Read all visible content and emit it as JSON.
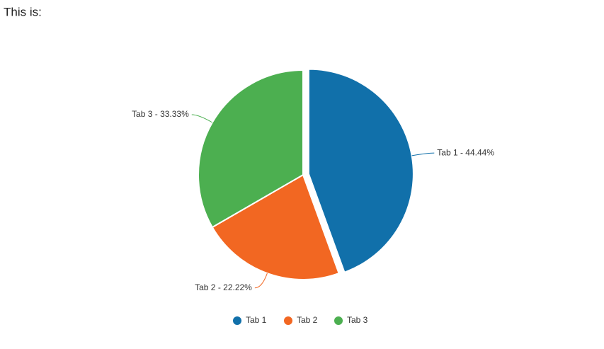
{
  "chart_data": {
    "type": "pie",
    "title": "This is:",
    "categories": [
      "Tab 1",
      "Tab 2",
      "Tab 3"
    ],
    "values": [
      44.44,
      22.22,
      33.33
    ],
    "value_labels": [
      "Tab 1 - 44.44%",
      "Tab 2 - 22.22%",
      "Tab 3 - 33.33%"
    ],
    "colors": [
      "#1170aa",
      "#f26722",
      "#4caf50"
    ],
    "legend": "bottom"
  }
}
